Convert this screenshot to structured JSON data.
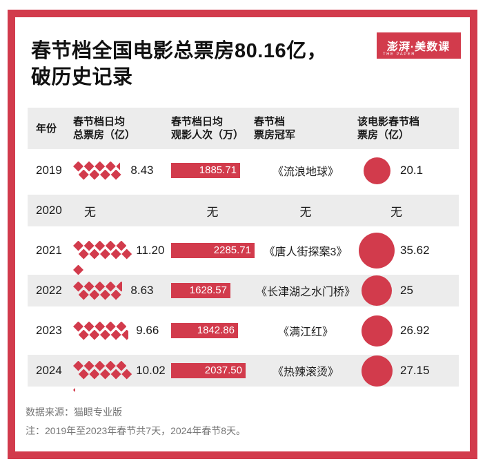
{
  "title": {
    "line1": "春节档全国电影总票房80.16亿，",
    "line2": "破历史记录"
  },
  "logo": {
    "text": "澎湃·美数课",
    "subtext": "THE PAPER"
  },
  "colors": {
    "accent": "#D23B4C",
    "band_gray": "#ECECEC",
    "footer_text": "#757575"
  },
  "table": {
    "headers": [
      {
        "line1": "年份",
        "line2": ""
      },
      {
        "line1": "春节档日均",
        "line2": "总票房（亿）"
      },
      {
        "line1": "春节档日均",
        "line2": "观影人次（万）"
      },
      {
        "line1": "春节档",
        "line2": "票房冠军"
      },
      {
        "line1": "该电影春节档",
        "line2": "票房（亿）"
      }
    ],
    "rows": [
      {
        "year": "2019",
        "daily_value": 8.43,
        "daily_label": "8.43",
        "audience_value": 1885.71,
        "audience_label": "1885.71",
        "champion": "《流浪地球》",
        "champion_box_value": 20.1,
        "champion_box_label": "20.1",
        "shaded": false
      },
      {
        "year": "2020",
        "none_label": "无",
        "shaded": true
      },
      {
        "year": "2021",
        "daily_value": 11.2,
        "daily_label": "11.20",
        "audience_value": 2285.71,
        "audience_label": "2285.71",
        "champion": "《唐人街探案3》",
        "champion_box_value": 35.62,
        "champion_box_label": "35.62",
        "shaded": false
      },
      {
        "year": "2022",
        "daily_value": 8.63,
        "daily_label": "8.63",
        "audience_value": 1628.57,
        "audience_label": "1628.57",
        "champion": "《长津湖之水门桥》",
        "champion_box_value": 25,
        "champion_box_label": "25",
        "shaded": true
      },
      {
        "year": "2023",
        "daily_value": 9.66,
        "daily_label": "9.66",
        "audience_value": 1842.86,
        "audience_label": "1842.86",
        "champion": "《满江红》",
        "champion_box_value": 26.92,
        "champion_box_label": "26.92",
        "shaded": false
      },
      {
        "year": "2024",
        "daily_value": 10.02,
        "daily_label": "10.02",
        "audience_value": 2037.5,
        "audience_label": "2037.50",
        "champion": "《热辣滚烫》",
        "champion_box_value": 27.15,
        "champion_box_label": "27.15",
        "shaded": true
      }
    ]
  },
  "footer": {
    "source": "数据来源：猫眼专业版",
    "note": "注：2019年至2023年春节共7天，2024年春节8天。"
  },
  "chart_data": {
    "type": "table",
    "title": "春节档全国电影总票房80.16亿，破历史记录",
    "columns": [
      "年份",
      "春节档日均总票房（亿）",
      "春节档日均观影人次（万）",
      "春节档票房冠军",
      "该电影春节档票房（亿）"
    ],
    "rows": [
      [
        "2019",
        8.43,
        1885.71,
        "《流浪地球》",
        20.1
      ],
      [
        "2020",
        "无",
        "无",
        "无",
        "无"
      ],
      [
        "2021",
        11.2,
        2285.71,
        "《唐人街探案3》",
        35.62
      ],
      [
        "2022",
        8.63,
        1628.57,
        "《长津湖之水门桥》",
        25
      ],
      [
        "2023",
        9.66,
        1842.86,
        "《满江红》",
        26.92
      ],
      [
        "2024",
        10.02,
        2037.5,
        "《热辣滚烫》",
        27.15
      ]
    ],
    "encodings": {
      "daily_boxoffice": "pictogram: 1 diamond = 1 亿, partial diamond for fraction",
      "audience": "bar length proportional to value, label inside bar",
      "champion_boxoffice": "circle area proportional to value"
    },
    "source": "数据来源：猫眼专业版",
    "note": "注：2019年至2023年春节共7天，2024年春节8天。"
  }
}
